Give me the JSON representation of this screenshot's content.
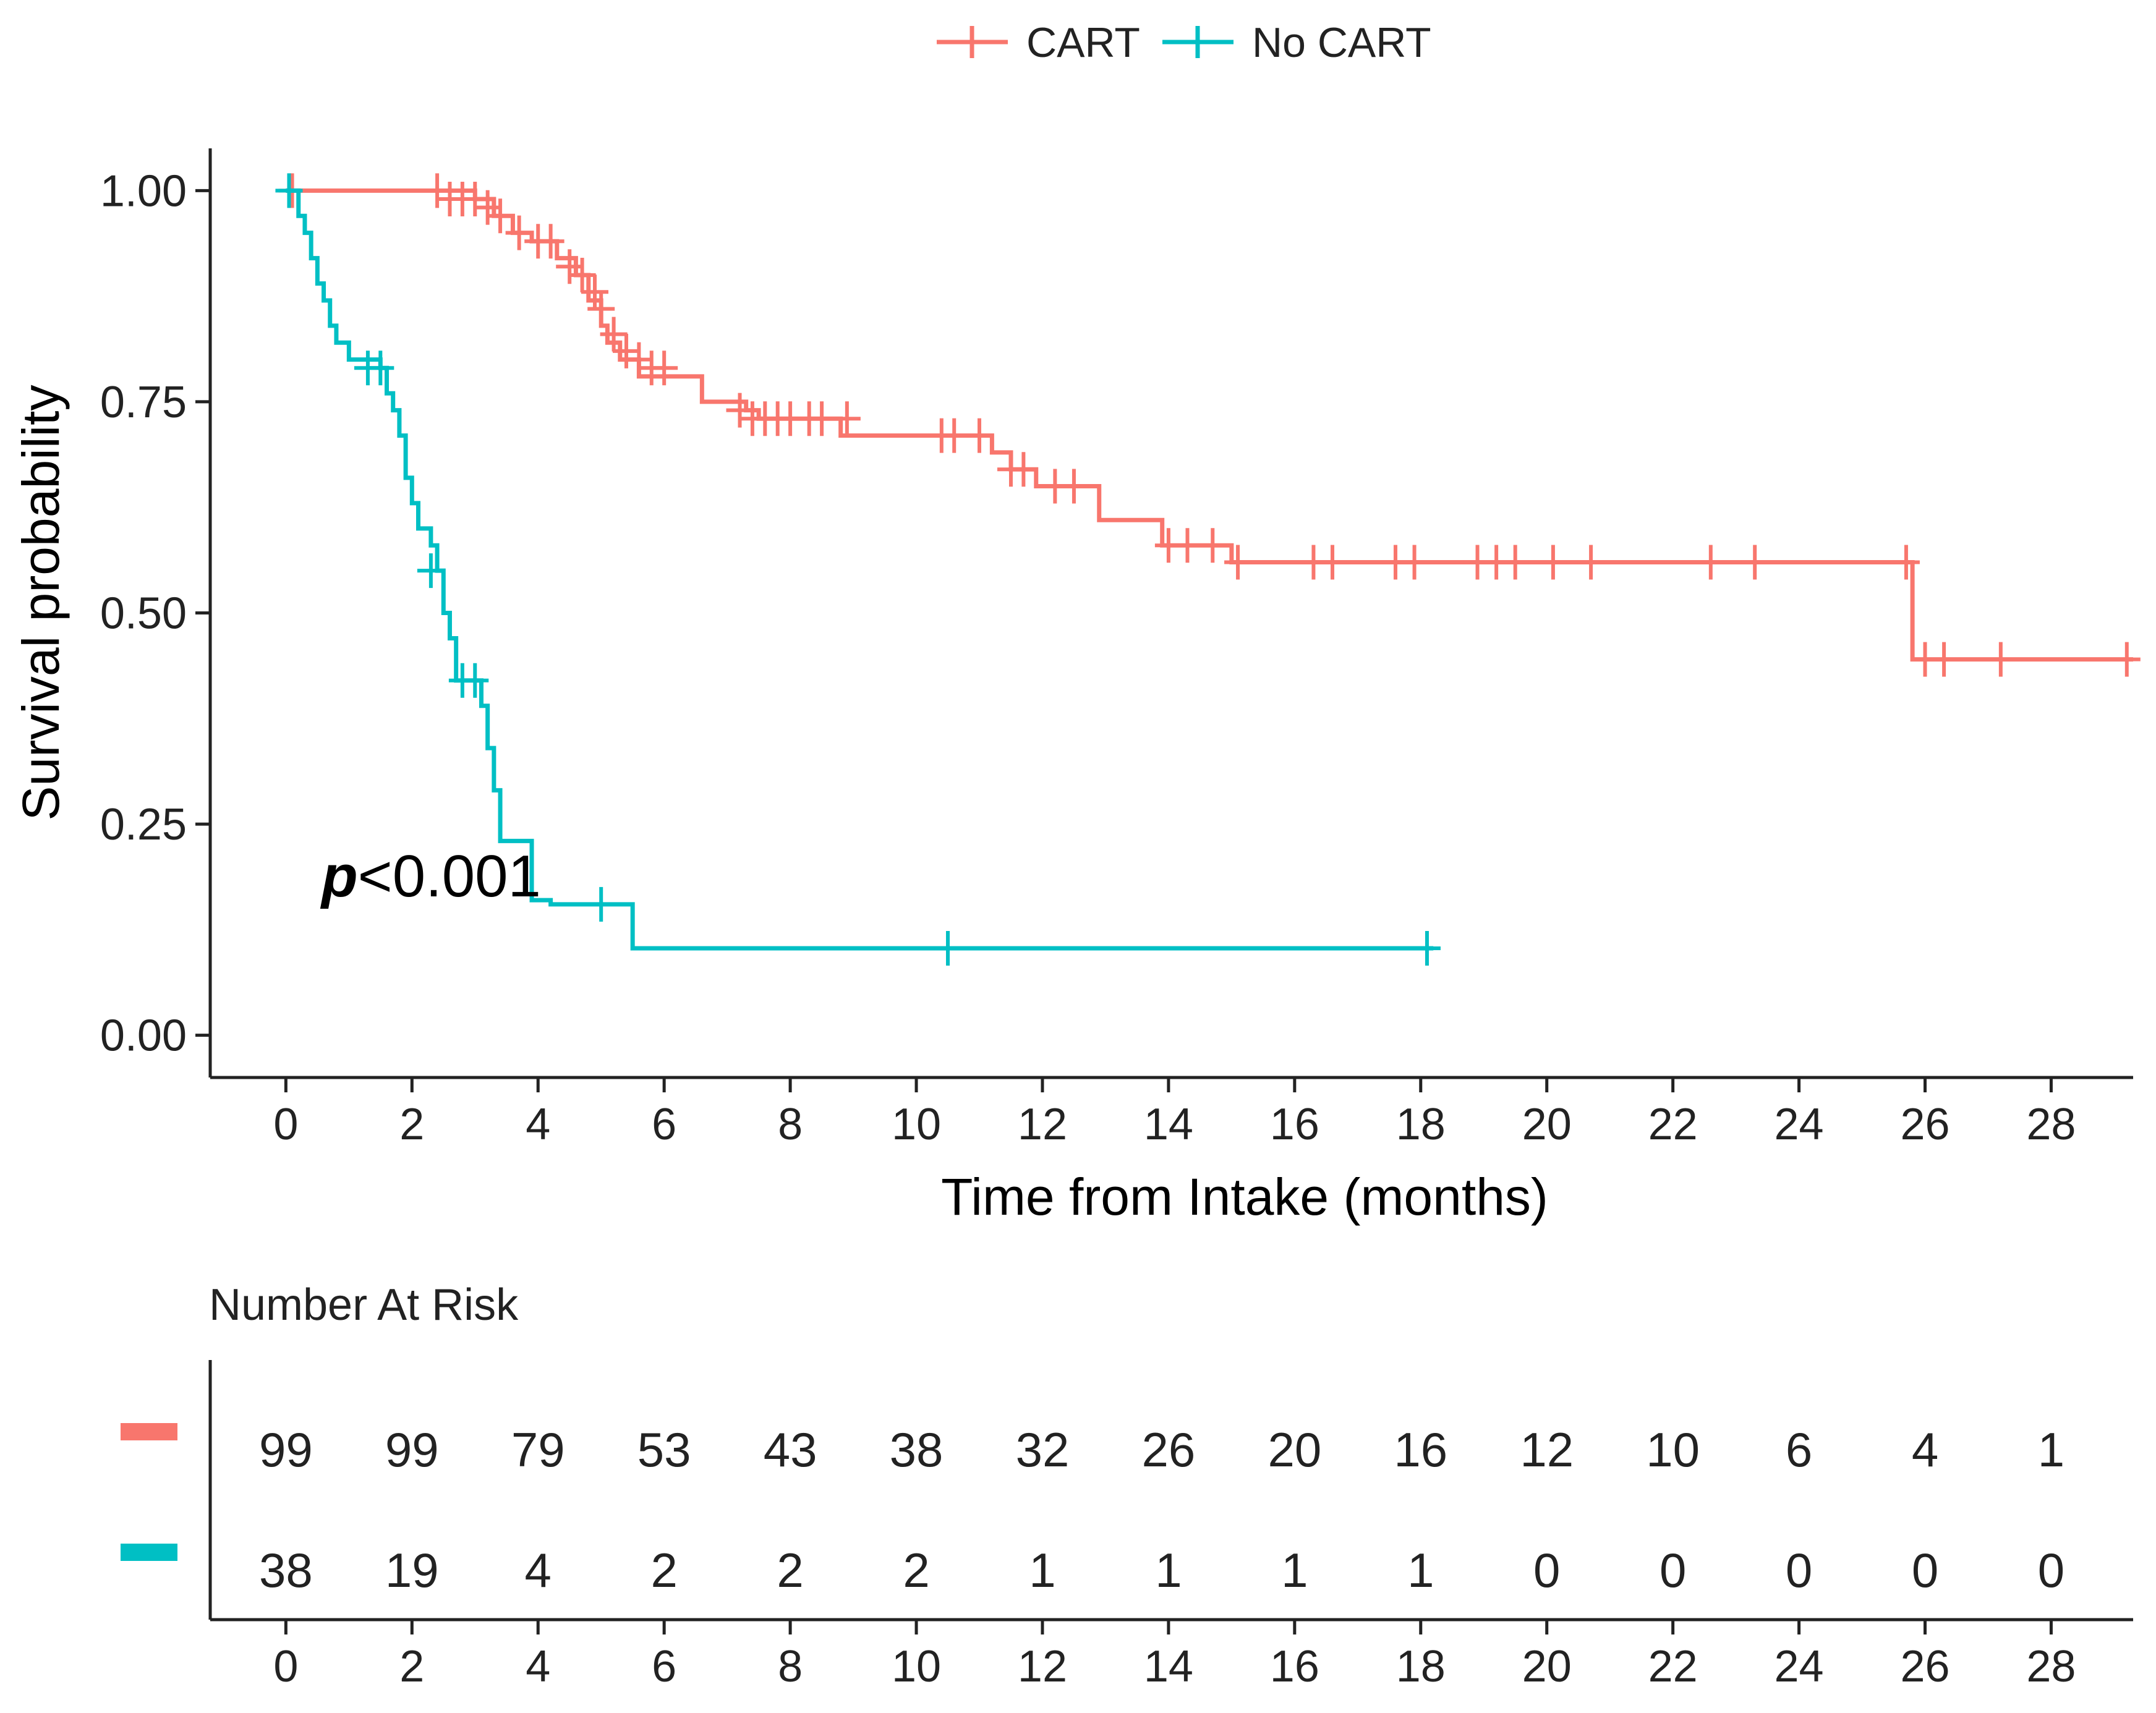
{
  "chart_data": {
    "type": "line",
    "subtype": "kaplan-meier",
    "xlabel": "Time from Intake (months)",
    "ylabel": "Survival probability",
    "xlim": [
      -1.2,
      29.3
    ],
    "ylim": [
      -0.05,
      1.05
    ],
    "xticks": [
      0,
      2,
      4,
      6,
      8,
      10,
      12,
      14,
      16,
      18,
      20,
      22,
      24,
      26,
      28
    ],
    "xtick_labels": [
      "0",
      "2",
      "4",
      "6",
      "8",
      "10",
      "12",
      "14",
      "16",
      "18",
      "20",
      "22",
      "24",
      "26",
      "28"
    ],
    "yticks": [
      0,
      0.25,
      0.5,
      0.75,
      1.0
    ],
    "ytick_labels": [
      "0.00",
      "0.25",
      "0.50",
      "0.75",
      "1.00"
    ],
    "legend": {
      "position": "top",
      "entries": [
        "CART",
        "No CART"
      ]
    },
    "annotation": {
      "text_bold": "p",
      "text_rest": "<0.001",
      "x": 0.4,
      "y": 0.18
    },
    "series": [
      {
        "name": "CART",
        "color": "#F8766D",
        "steps": [
          [
            0,
            1.0
          ],
          [
            3.0,
            0.99
          ],
          [
            3.3,
            0.97
          ],
          [
            3.6,
            0.95
          ],
          [
            3.9,
            0.94
          ],
          [
            4.3,
            0.92
          ],
          [
            4.6,
            0.9
          ],
          [
            4.8,
            0.87
          ],
          [
            5.0,
            0.84
          ],
          [
            5.1,
            0.82
          ],
          [
            5.3,
            0.8
          ],
          [
            5.6,
            0.78
          ],
          [
            6.6,
            0.75
          ],
          [
            7.3,
            0.74
          ],
          [
            7.5,
            0.73
          ],
          [
            8.8,
            0.71
          ],
          [
            11.2,
            0.69
          ],
          [
            11.5,
            0.67
          ],
          [
            11.9,
            0.65
          ],
          [
            12.9,
            0.61
          ],
          [
            13.9,
            0.58
          ],
          [
            15.0,
            0.56
          ],
          [
            25.8,
            0.445
          ]
        ],
        "end_x": 29.3,
        "censors": [
          [
            0.1,
            1.0
          ],
          [
            2.4,
            1.0
          ],
          [
            2.6,
            0.99
          ],
          [
            2.8,
            0.99
          ],
          [
            3.0,
            0.99
          ],
          [
            3.2,
            0.98
          ],
          [
            3.4,
            0.97
          ],
          [
            3.7,
            0.95
          ],
          [
            4.0,
            0.94
          ],
          [
            4.2,
            0.94
          ],
          [
            4.5,
            0.91
          ],
          [
            4.7,
            0.9
          ],
          [
            4.9,
            0.88
          ],
          [
            5.0,
            0.86
          ],
          [
            5.2,
            0.83
          ],
          [
            5.4,
            0.81
          ],
          [
            5.6,
            0.8
          ],
          [
            5.8,
            0.79
          ],
          [
            6.0,
            0.79
          ],
          [
            7.2,
            0.74
          ],
          [
            7.4,
            0.73
          ],
          [
            7.6,
            0.73
          ],
          [
            7.8,
            0.73
          ],
          [
            8.0,
            0.73
          ],
          [
            8.3,
            0.73
          ],
          [
            8.5,
            0.73
          ],
          [
            8.9,
            0.73
          ],
          [
            10.4,
            0.71
          ],
          [
            10.6,
            0.71
          ],
          [
            11.0,
            0.71
          ],
          [
            11.5,
            0.67
          ],
          [
            11.7,
            0.67
          ],
          [
            12.2,
            0.65
          ],
          [
            12.5,
            0.65
          ],
          [
            14.0,
            0.58
          ],
          [
            14.3,
            0.58
          ],
          [
            14.7,
            0.58
          ],
          [
            15.1,
            0.56
          ],
          [
            16.3,
            0.56
          ],
          [
            16.6,
            0.56
          ],
          [
            17.6,
            0.56
          ],
          [
            17.9,
            0.56
          ],
          [
            18.9,
            0.56
          ],
          [
            19.2,
            0.56
          ],
          [
            19.5,
            0.56
          ],
          [
            20.1,
            0.56
          ],
          [
            20.7,
            0.56
          ],
          [
            22.6,
            0.56
          ],
          [
            23.3,
            0.56
          ],
          [
            25.7,
            0.56
          ],
          [
            26.0,
            0.445
          ],
          [
            26.3,
            0.445
          ],
          [
            27.2,
            0.445
          ],
          [
            29.2,
            0.445
          ]
        ]
      },
      {
        "name": "No CART",
        "color": "#00BFC4",
        "steps": [
          [
            0,
            1.0
          ],
          [
            0.2,
            0.97
          ],
          [
            0.3,
            0.95
          ],
          [
            0.4,
            0.92
          ],
          [
            0.5,
            0.89
          ],
          [
            0.6,
            0.87
          ],
          [
            0.7,
            0.84
          ],
          [
            0.8,
            0.82
          ],
          [
            1.0,
            0.8
          ],
          [
            1.5,
            0.79
          ],
          [
            1.6,
            0.76
          ],
          [
            1.7,
            0.74
          ],
          [
            1.8,
            0.71
          ],
          [
            1.9,
            0.66
          ],
          [
            2.0,
            0.63
          ],
          [
            2.1,
            0.6
          ],
          [
            2.3,
            0.58
          ],
          [
            2.4,
            0.55
          ],
          [
            2.5,
            0.5
          ],
          [
            2.6,
            0.47
          ],
          [
            2.7,
            0.42
          ],
          [
            3.1,
            0.39
          ],
          [
            3.2,
            0.34
          ],
          [
            3.3,
            0.29
          ],
          [
            3.4,
            0.23
          ],
          [
            3.9,
            0.16
          ],
          [
            4.2,
            0.155
          ],
          [
            5.5,
            0.103
          ]
        ],
        "end_x": 18.2,
        "censors": [
          [
            0.05,
            1.0
          ],
          [
            1.3,
            0.79
          ],
          [
            1.5,
            0.79
          ],
          [
            2.3,
            0.55
          ],
          [
            2.8,
            0.42
          ],
          [
            3.0,
            0.42
          ],
          [
            5.0,
            0.155
          ],
          [
            10.5,
            0.103
          ],
          [
            18.1,
            0.103
          ]
        ]
      }
    ],
    "risk_table": {
      "title": "Number At Risk",
      "times": [
        "0",
        "2",
        "4",
        "6",
        "8",
        "10",
        "12",
        "14",
        "16",
        "18",
        "20",
        "22",
        "24",
        "26",
        "28"
      ],
      "rows": [
        {
          "name": "CART",
          "color": "#F8766D",
          "values": [
            "99",
            "99",
            "79",
            "53",
            "43",
            "38",
            "32",
            "26",
            "20",
            "16",
            "12",
            "10",
            "6",
            "4",
            "1"
          ]
        },
        {
          "name": "No CART",
          "color": "#00BFC4",
          "values": [
            "38",
            "19",
            "4",
            "2",
            "2",
            "2",
            "1",
            "1",
            "1",
            "1",
            "0",
            "0",
            "0",
            "0",
            "0"
          ]
        }
      ]
    }
  }
}
